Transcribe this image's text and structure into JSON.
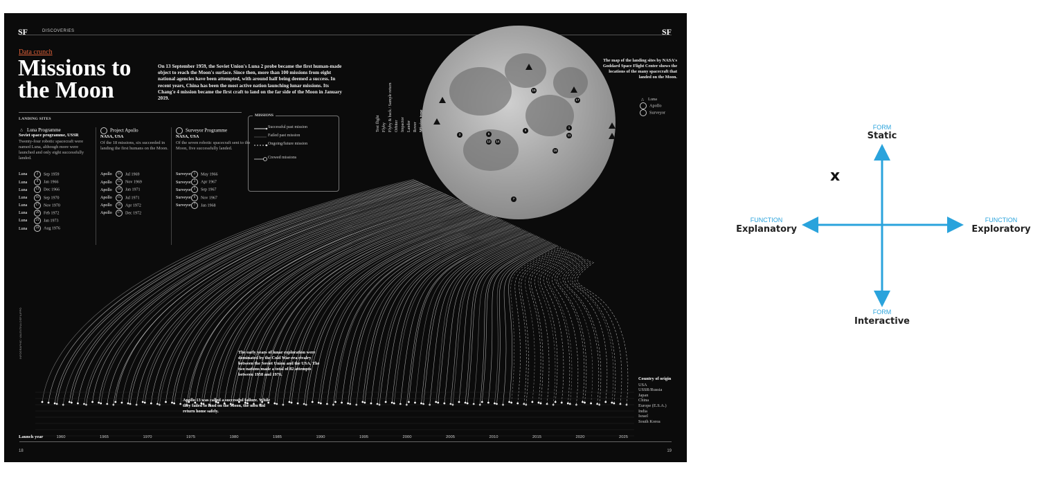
{
  "header": {
    "logo_left": "SF",
    "section": "DISCOVERIES",
    "logo_right": "SF"
  },
  "article": {
    "kicker": "Data crunch",
    "title": "Missions to the Moon",
    "intro": "On 13 September 1959, the Soviet Union's Luna 2 probe became the first human-made object to reach the Moon's surface. Since then, more than 100 missions from eight national agencies have been attempted, with around half being deemed a success. In recent years, China has been the most active nation launching lunar missions. Its Chang'e 4 mission became the first craft to land on the far side of the Moon in January 2019."
  },
  "landing_sites": {
    "label": "LANDING SITES",
    "programmes": [
      {
        "name": "Luna Programme",
        "org": "Soviet space programme, USSR",
        "desc": "Twenty-four robotic spacecraft were named Luna, although more were launched and only eight successfully landed.",
        "missions": [
          {
            "name": "Luna",
            "num": "2",
            "date": "Sep 1959"
          },
          {
            "name": "Luna",
            "num": "9",
            "date": "Jan 1966"
          },
          {
            "name": "Luna",
            "num": "13",
            "date": "Dec 1966"
          },
          {
            "name": "Luna",
            "num": "16",
            "date": "Sep 1970"
          },
          {
            "name": "Luna",
            "num": "17",
            "date": "Nov 1970"
          },
          {
            "name": "Luna",
            "num": "20",
            "date": "Feb 1972"
          },
          {
            "name": "Luna",
            "num": "21",
            "date": "Jan 1973"
          },
          {
            "name": "Luna",
            "num": "24",
            "date": "Aug 1976"
          }
        ]
      },
      {
        "name": "Project Apollo",
        "org": "NASA, USA",
        "desc": "Of the 18 missions, six succeeded in landing the first humans on the Moon.",
        "missions": [
          {
            "name": "Apollo",
            "num": "11",
            "date": "Jul 1969"
          },
          {
            "name": "Apollo",
            "num": "12",
            "date": "Nov 1969"
          },
          {
            "name": "Apollo",
            "num": "14",
            "date": "Jan 1971"
          },
          {
            "name": "Apollo",
            "num": "15",
            "date": "Jul 1971"
          },
          {
            "name": "Apollo",
            "num": "16",
            "date": "Apr 1972"
          },
          {
            "name": "Apollo",
            "num": "17",
            "date": "Dec 1972"
          }
        ]
      },
      {
        "name": "Surveyor Programme",
        "org": "NASA, USA",
        "desc": "Of the seven robotic spacecraft sent to the Moon, five successfully landed.",
        "missions": [
          {
            "name": "Surveyor",
            "num": "1",
            "date": "May 1966"
          },
          {
            "name": "Surveyor",
            "num": "3",
            "date": "Apr 1967"
          },
          {
            "name": "Surveyor",
            "num": "5",
            "date": "Sep 1967"
          },
          {
            "name": "Surveyor",
            "num": "6",
            "date": "Nov 1967"
          },
          {
            "name": "Surveyor",
            "num": "7",
            "date": "Jan 1968"
          }
        ]
      }
    ]
  },
  "missions_legend": {
    "label": "MISSIONS",
    "items": [
      "Successful past mission",
      "Failed past mission",
      "Ongoing/future mission",
      "Crewed missions"
    ]
  },
  "mission_types": [
    "Mission type",
    "Rover",
    "Lander",
    "Impactor",
    "Orbiter",
    "Flyby & back / Sample return",
    "Flyby",
    "Test flight"
  ],
  "map_note": "The map of the landing sites by NASA's Goddard Space Flight Center shows the locations of the many spacecraft that landed on the Moon.",
  "map_legend": [
    "Luna",
    "Apollo",
    "Surveyor"
  ],
  "annotations": {
    "cold_war": "The early years of lunar exploration were dominated by the Cold War-era rivalry between the Soviet Union and the USA. The two nations made a total of 82 attempts between 1958 and 1976.",
    "apollo13": "Apollo 13 was called a successful failure. While they failed to land on the Moon, the men did return home safely."
  },
  "country_of_origin": {
    "label": "Country of origin",
    "items": [
      "USA",
      "USSR/Russia",
      "Japan",
      "China",
      "Europe (E.S.A.)",
      "India",
      "Israel",
      "South Korea"
    ]
  },
  "launch_year": {
    "label": "Launch year",
    "ticks": [
      "1960",
      "1965",
      "1970",
      "1975",
      "1980",
      "1985",
      "1990",
      "1995",
      "2000",
      "2005",
      "2010",
      "2015",
      "2020",
      "2025"
    ]
  },
  "credit": "INFOGRAPHIC: VALENTINA D'EFILIPPO",
  "pages": {
    "left": "18",
    "right": "19"
  },
  "quadrant": {
    "top": {
      "axis": "FORM",
      "label": "Static"
    },
    "bottom": {
      "axis": "FORM",
      "label": "Interactive"
    },
    "left": {
      "axis": "FUNCTION",
      "label": "Explanatory"
    },
    "right": {
      "axis": "FUNCTION",
      "label": "Exploratory"
    },
    "marker": "x",
    "color": "#2aa3dc"
  }
}
